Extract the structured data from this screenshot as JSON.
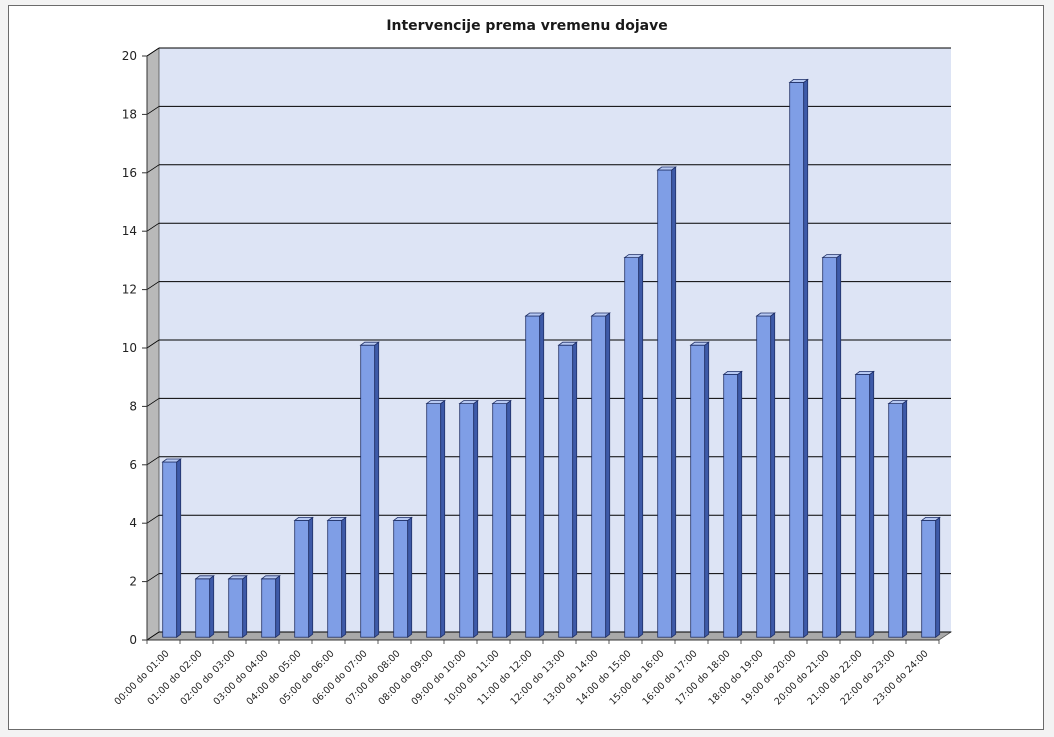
{
  "chart_data": {
    "type": "bar",
    "title": "Intervencije prema vremenu dojave",
    "xlabel": "",
    "ylabel": "",
    "ylim": [
      0,
      20
    ],
    "yticks": [
      "0",
      "2",
      "4",
      "6",
      "8",
      "10",
      "12",
      "14",
      "16",
      "18",
      "20"
    ],
    "categories": [
      "00:00 do 01:00",
      "01:00 do 02:00",
      "02:00 do 03:00",
      "03:00 do 04:00",
      "04:00 do 05:00",
      "05:00 do 06:00",
      "06:00 do 07:00",
      "07:00 do 08:00",
      "08:00 do 09:00",
      "09:00 do 10:00",
      "10:00 do 11:00",
      "11:00 do 12:00",
      "12:00 do 13:00",
      "13:00 do 14:00",
      "14:00 do 15:00",
      "15:00 do 16:00",
      "16:00 do 17:00",
      "17:00 do 18:00",
      "18:00 do 19:00",
      "19:00 do 20:00",
      "20:00 do 21:00",
      "21:00 do 22:00",
      "22:00 do 23:00",
      "23:00 do 24:00"
    ],
    "values": [
      6,
      2,
      2,
      2,
      4,
      4,
      10,
      4,
      8,
      8,
      8,
      11,
      10,
      11,
      13,
      16,
      10,
      9,
      11,
      19,
      13,
      9,
      8,
      4
    ],
    "grid": true,
    "legend": "none",
    "colors": {
      "bar_front": "#7f9ee6",
      "bar_side": "#3e5aa8",
      "bar_top": "#b7c9f3",
      "bar_edge": "#1f2f66",
      "plot_wall": "#dde4f5",
      "side_wall": "#b9b9b9",
      "floor": "#a9a9a9",
      "grid": "#000000"
    }
  }
}
